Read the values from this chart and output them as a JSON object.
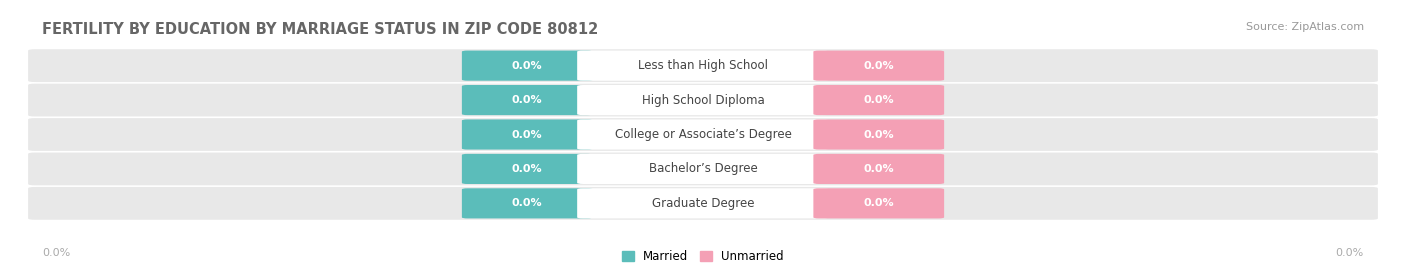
{
  "title": "FERTILITY BY EDUCATION BY MARRIAGE STATUS IN ZIP CODE 80812",
  "source": "Source: ZipAtlas.com",
  "categories": [
    "Less than High School",
    "High School Diploma",
    "College or Associate’s Degree",
    "Bachelor’s Degree",
    "Graduate Degree"
  ],
  "married_values": [
    "0.0%",
    "0.0%",
    "0.0%",
    "0.0%",
    "0.0%"
  ],
  "unmarried_values": [
    "0.0%",
    "0.0%",
    "0.0%",
    "0.0%",
    "0.0%"
  ],
  "married_color": "#5bbdba",
  "unmarried_color": "#f4a0b5",
  "row_bg_color": "#e8e8e8",
  "label_married": "Married",
  "label_unmarried": "Unmarried",
  "axis_label_left": "0.0%",
  "axis_label_right": "0.0%",
  "title_fontsize": 10.5,
  "source_fontsize": 8,
  "cat_fontsize": 8.5,
  "val_fontsize": 8,
  "tick_fontsize": 8,
  "legend_fontsize": 8.5
}
